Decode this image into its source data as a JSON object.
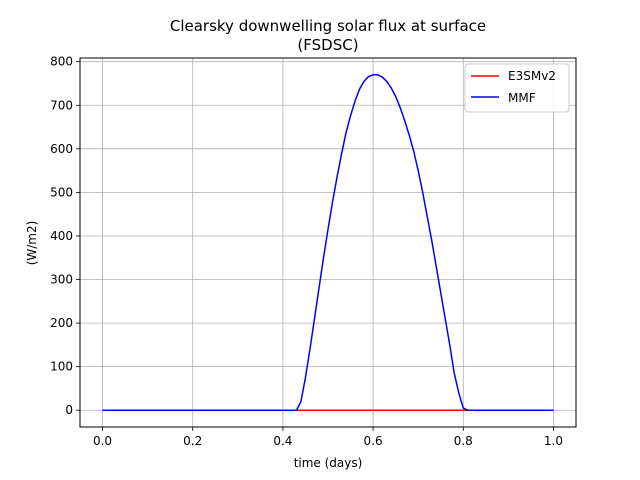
{
  "chart_data": {
    "type": "line",
    "title_line1": "Clearsky downwelling solar flux at surface",
    "title_line2": "(FSDSC)",
    "xlabel": "time (days)",
    "ylabel": "(W/m2)",
    "xlim": [
      -0.05,
      1.05
    ],
    "ylim": [
      -38.5,
      808.5
    ],
    "grid": true,
    "legend_position": "top-right",
    "x_ticks": [
      0.0,
      0.2,
      0.4,
      0.6,
      0.8,
      1.0
    ],
    "x_tick_labels": [
      "0.0",
      "0.2",
      "0.4",
      "0.6",
      "0.8",
      "1.0"
    ],
    "y_ticks": [
      0,
      100,
      200,
      300,
      400,
      500,
      600,
      700,
      800
    ],
    "y_tick_labels": [
      "0",
      "100",
      "200",
      "300",
      "400",
      "500",
      "600",
      "700",
      "800"
    ],
    "series": [
      {
        "name": "E3SMv2",
        "color": "#ff0000",
        "x": [
          0.0,
          0.0417,
          0.0833,
          0.125,
          0.1667,
          0.2083,
          0.25,
          0.2917,
          0.3333,
          0.375,
          0.4167,
          0.4583,
          0.5,
          0.5417,
          0.5833,
          0.625,
          0.6667,
          0.7083,
          0.75,
          0.7917,
          0.8333,
          0.875,
          0.9167,
          0.9583,
          1.0
        ],
        "y": [
          0,
          0,
          0,
          0,
          0,
          0,
          0,
          0,
          0,
          0,
          0,
          0,
          0,
          0,
          0,
          0,
          0,
          0,
          0,
          0,
          0,
          0,
          0,
          0,
          0
        ]
      },
      {
        "name": "MMF",
        "color": "#0000ff",
        "x": [
          0.0,
          0.1,
          0.2,
          0.3,
          0.4,
          0.43,
          0.44,
          0.45,
          0.46,
          0.47,
          0.48,
          0.49,
          0.5,
          0.51,
          0.52,
          0.53,
          0.54,
          0.55,
          0.56,
          0.57,
          0.58,
          0.59,
          0.6,
          0.61,
          0.62,
          0.63,
          0.64,
          0.65,
          0.66,
          0.67,
          0.68,
          0.69,
          0.7,
          0.71,
          0.72,
          0.73,
          0.74,
          0.75,
          0.76,
          0.77,
          0.78,
          0.79,
          0.8,
          0.81,
          0.82,
          0.83,
          0.84,
          0.85,
          0.86,
          0.87,
          0.88,
          0.89,
          0.9,
          0.95,
          1.0
        ],
        "y": [
          0,
          0,
          0,
          0,
          0,
          0,
          20,
          75,
          140,
          210,
          280,
          350,
          415,
          478,
          535,
          588,
          637,
          676,
          710,
          737,
          755,
          766,
          770,
          770,
          765,
          755,
          740,
          720,
          695,
          665,
          632,
          595,
          550,
          500,
          445,
          390,
          330,
          270,
          210,
          150,
          85,
          40,
          5,
          0,
          0,
          0,
          0,
          0,
          0,
          0,
          0,
          0,
          0,
          0,
          0
        ]
      }
    ]
  }
}
